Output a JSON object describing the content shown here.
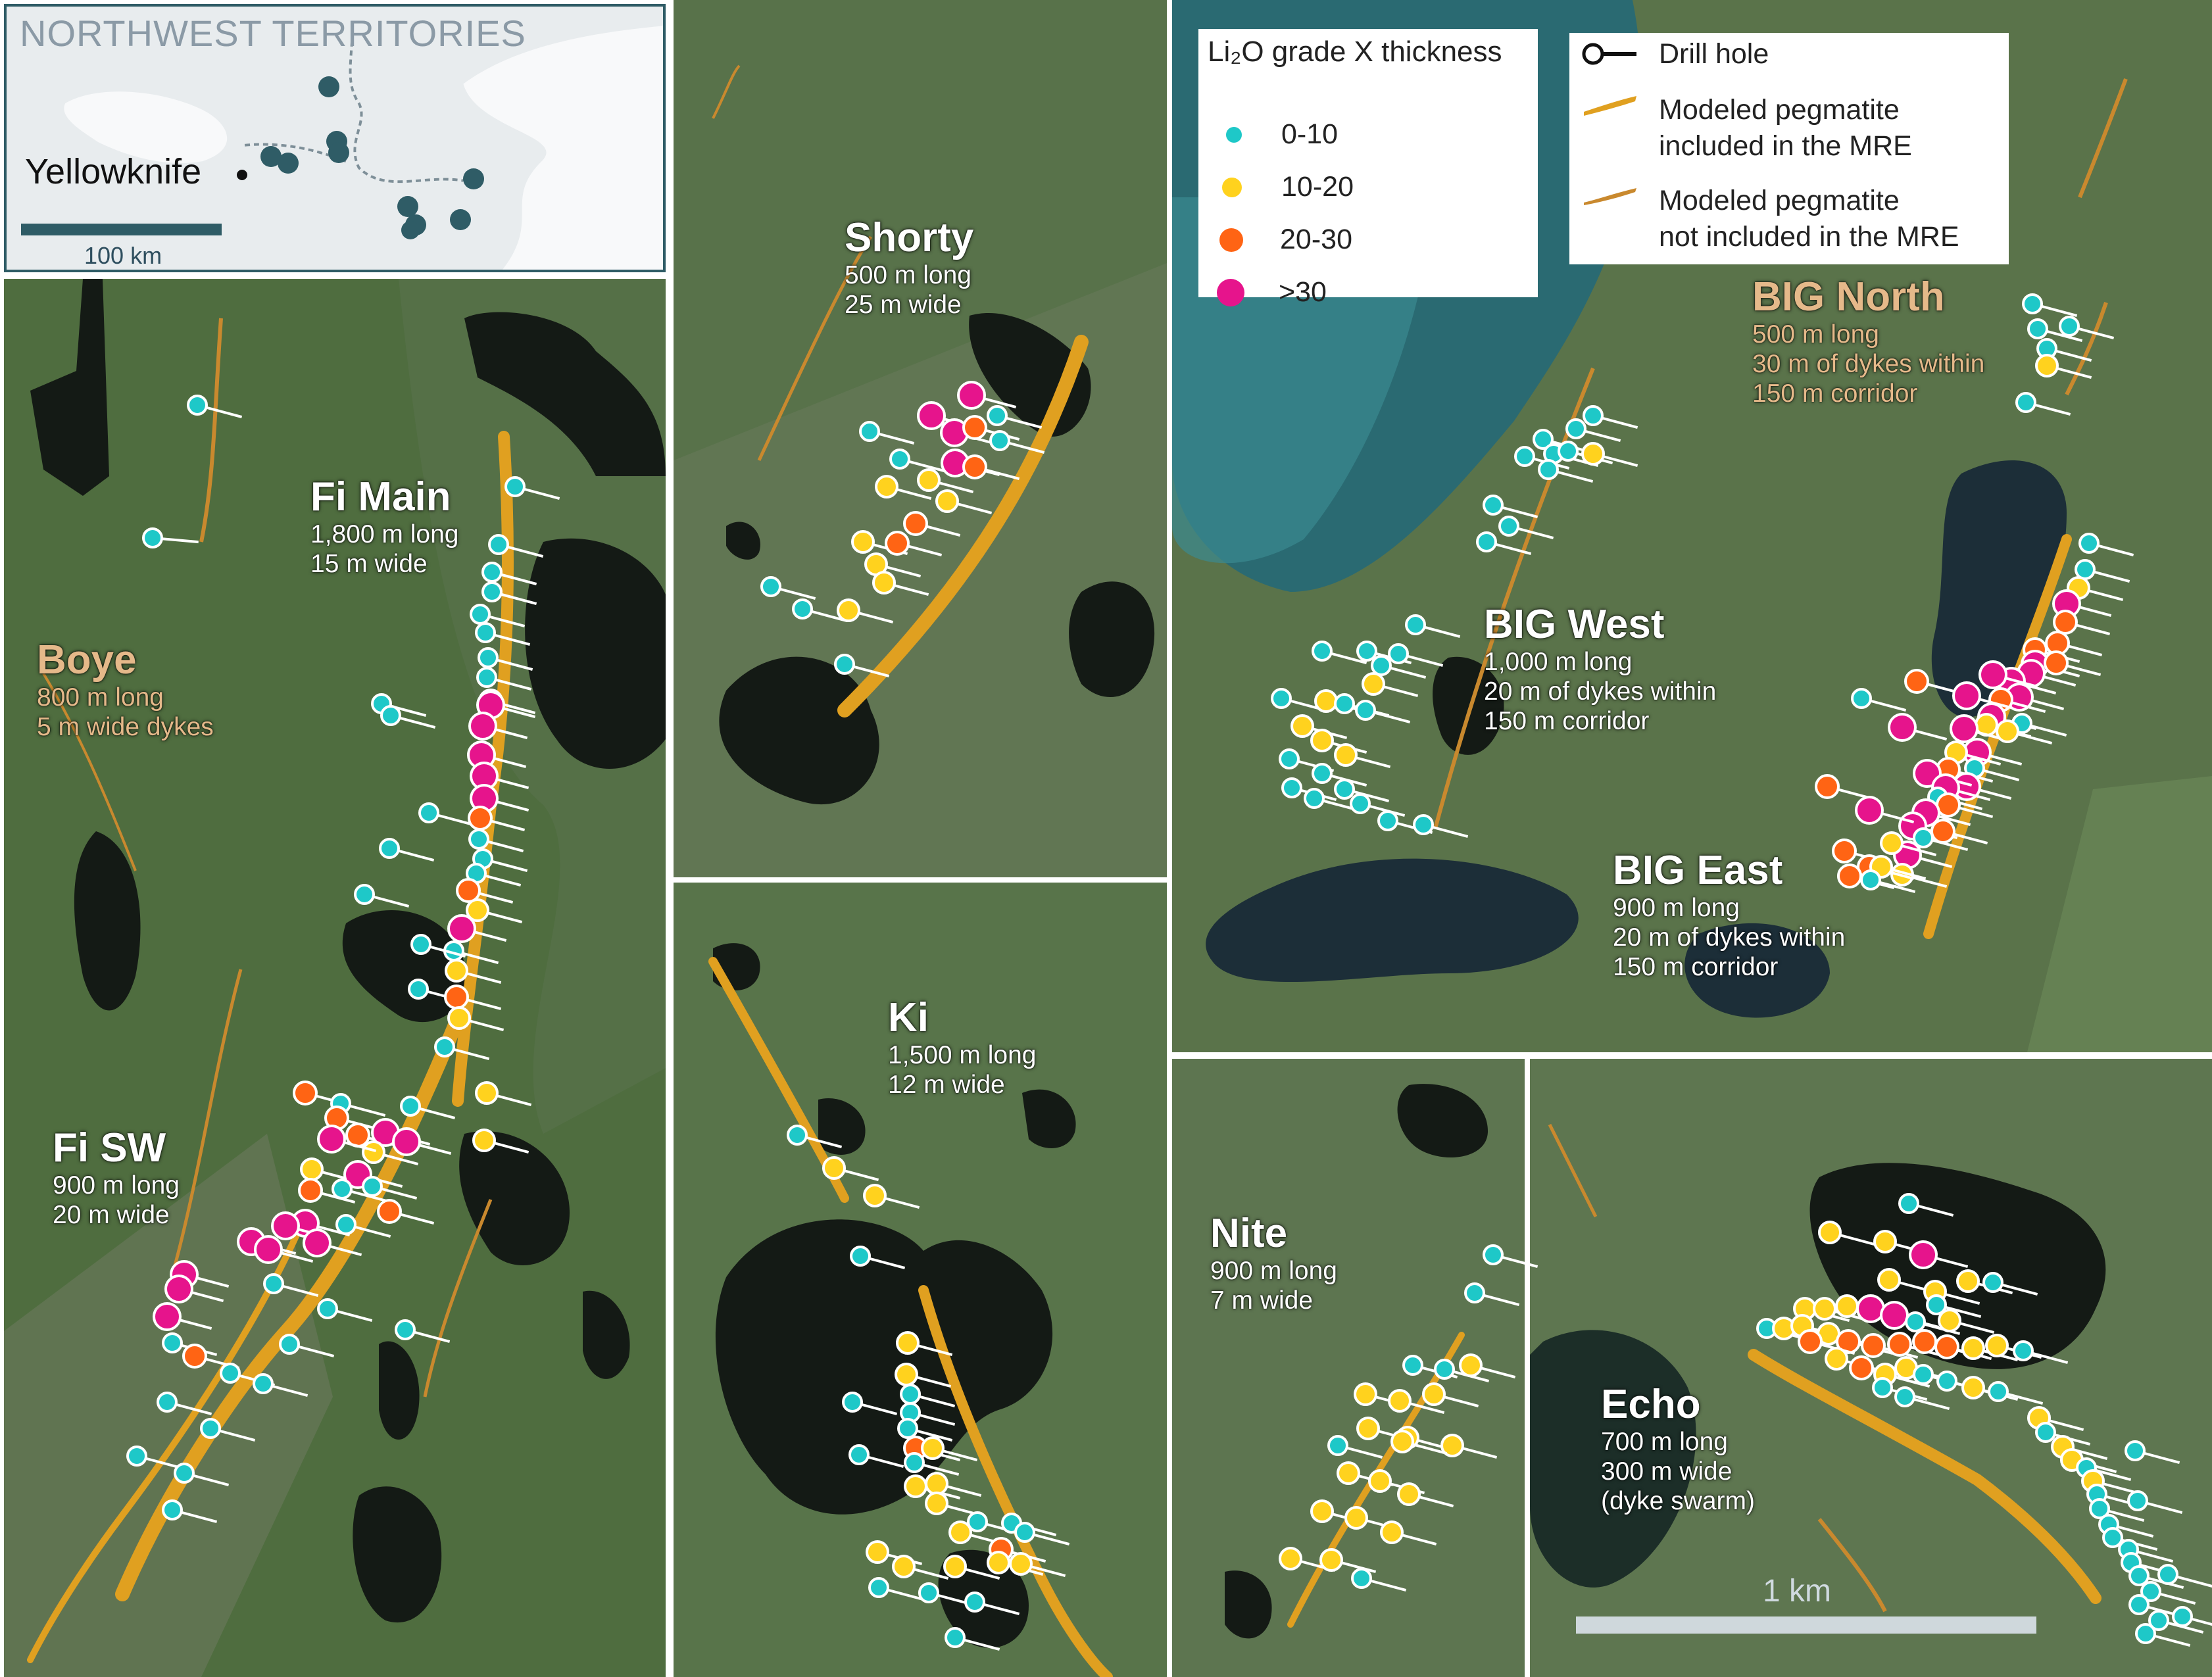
{
  "inset": {
    "title": "NORTHWEST TERRITORIES",
    "city": "Yellowknife",
    "scale_label": "100 km"
  },
  "legend_grade": {
    "title": "Li₂O grade X thickness",
    "items": [
      {
        "label": "0-10",
        "color": "#1ec8c8"
      },
      {
        "label": "10-20",
        "color": "#ffd21e"
      },
      {
        "label": "20-30",
        "color": "#ff6414"
      },
      {
        "label": ">30",
        "color": "#e6148c"
      }
    ]
  },
  "legend_symbols": {
    "items": [
      {
        "label": "Drill hole",
        "symbol": "drill-hole"
      },
      {
        "label": "Modeled pegmatite included in the MRE",
        "line1": "Modeled pegmatite",
        "line2": "included in the MRE",
        "color": "#e0a020"
      },
      {
        "label": "Modeled pegmatite not included in the MRE",
        "line1": "Modeled pegmatite",
        "line2": "not included in the MRE",
        "color": "#c9892e"
      }
    ]
  },
  "deposits": {
    "boye": {
      "name": "Boye",
      "line1": "800 m long",
      "line2": "5 m wide dykes"
    },
    "fi_main": {
      "name": "Fi Main",
      "line1": "1,800 m long",
      "line2": "15 m wide"
    },
    "fi_sw": {
      "name": "Fi SW",
      "line1": "900 m long",
      "line2": "20 m wide"
    },
    "shorty": {
      "name": "Shorty",
      "line1": "500 m long",
      "line2": "25 m wide"
    },
    "ki": {
      "name": "Ki",
      "line1": "1,500 m long",
      "line2": "12 m wide"
    },
    "big_north": {
      "name": "BIG North",
      "line1": "500 m long",
      "line2": "30 m of dykes within",
      "line3": "150 m corridor"
    },
    "big_west": {
      "name": "BIG West",
      "line1": "1,000 m long",
      "line2": "20 m of dykes within",
      "line3": "150 m corridor"
    },
    "big_east": {
      "name": "BIG East",
      "line1": "900 m long",
      "line2": "20 m of dykes within",
      "line3": "150 m corridor"
    },
    "nite": {
      "name": "Nite",
      "line1": "900 m long",
      "line2": "7 m wide"
    },
    "echo": {
      "name": "Echo",
      "line1": "700 m long",
      "line2": "300 m wide",
      "line3": "(dyke swarm)"
    }
  },
  "scale_bar": {
    "label": "1 km"
  },
  "colors": {
    "grade_0_10": "#1ec8c8",
    "grade_10_20": "#ffd21e",
    "grade_20_30": "#ff6414",
    "grade_30_plus": "#e6148c",
    "pegmatite_mre": "#e0a020",
    "pegmatite_non_mre": "#c9892e",
    "terrain": "#4d6b3e",
    "water": "#131a16",
    "inset_teal": "#2f5c66"
  }
}
